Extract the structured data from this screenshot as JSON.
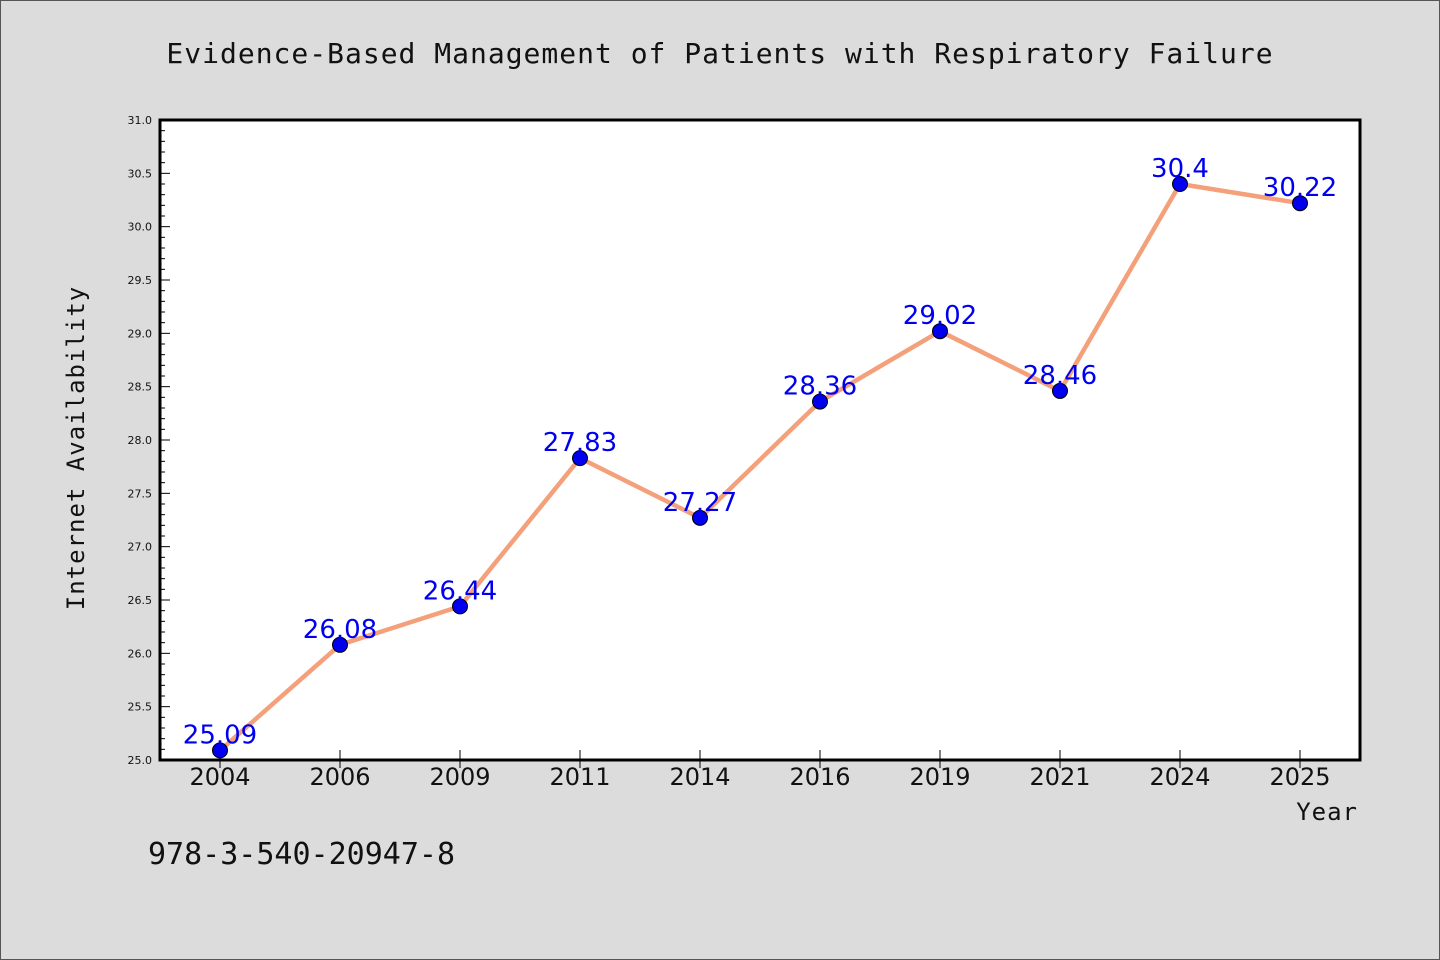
{
  "chart_data": {
    "type": "line",
    "title": "Evidence-Based Management of Patients with Respiratory Failure",
    "xlabel": "Year",
    "ylabel": "Internet Availability",
    "categories": [
      "2004",
      "2006",
      "2009",
      "2011",
      "2014",
      "2016",
      "2019",
      "2021",
      "2024",
      "2025"
    ],
    "series": [
      {
        "values": [
          25.09,
          26.08,
          26.44,
          27.83,
          27.27,
          28.36,
          29.02,
          28.46,
          30.4,
          30.22
        ],
        "data_labels": [
          "25.09",
          "26.08",
          "26.44",
          "27.83",
          "27.27",
          "28.36",
          "29.02",
          "28.46",
          "30.4",
          "30.22"
        ]
      }
    ],
    "ylim": [
      25.0,
      31.0
    ],
    "y_ticks": [
      "25.0",
      "25.5",
      "26.0",
      "26.5",
      "27.0",
      "27.5",
      "28.0",
      "28.5",
      "29.0",
      "29.5",
      "30.0",
      "30.5",
      "31.0"
    ],
    "grid": false,
    "legend": "none"
  },
  "colors": {
    "line": "#f4a07a",
    "marker": "#0000ee",
    "data_label": "#0000ee",
    "plot_background": "#ffffff",
    "page_background": "#dcdcdc"
  },
  "footer": {
    "isbn": "978-3-540-20947-8"
  }
}
